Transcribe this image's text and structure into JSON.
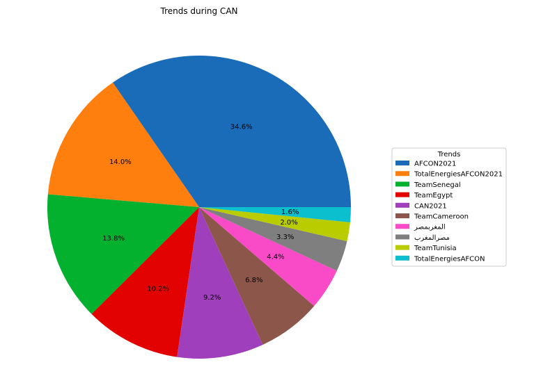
{
  "chart_data": {
    "type": "pie",
    "title": "Trends during  CAN",
    "legend_title": "Trends",
    "legend_position": "right",
    "start_angle_deg": 0,
    "direction": "counterclockwise",
    "slices": [
      {
        "label": "AFCON2021",
        "value": 34.6,
        "pct_label": "34.6%",
        "color": "#1a6bb8"
      },
      {
        "label": "TotalEnergiesAFCON2021",
        "value": 14.0,
        "pct_label": "14.0%",
        "color": "#ff7f0e"
      },
      {
        "label": "TeamSenegal",
        "value": 13.8,
        "pct_label": "13.8%",
        "color": "#04b12f"
      },
      {
        "label": "TeamEgypt",
        "value": 10.2,
        "pct_label": "10.2%",
        "color": "#e30202"
      },
      {
        "label": "CAN2021",
        "value": 9.2,
        "pct_label": "9.2%",
        "color": "#a03fbc"
      },
      {
        "label": "TeamCameroon",
        "value": 6.8,
        "pct_label": "6.8%",
        "color": "#8c564b"
      },
      {
        "label": "المغربمصر",
        "value": 4.4,
        "pct_label": "4.4%",
        "color": "#f94bc8"
      },
      {
        "label": "مصرالمغرب",
        "value": 3.3,
        "pct_label": "3.3%",
        "color": "#7f7f7f"
      },
      {
        "label": "TeamTunisia",
        "value": 2.0,
        "pct_label": "2.0%",
        "color": "#b8cc00"
      },
      {
        "label": "TotalEnergiesAFCON",
        "value": 1.6,
        "pct_label": "1.6%",
        "color": "#0cbfcf"
      }
    ]
  }
}
